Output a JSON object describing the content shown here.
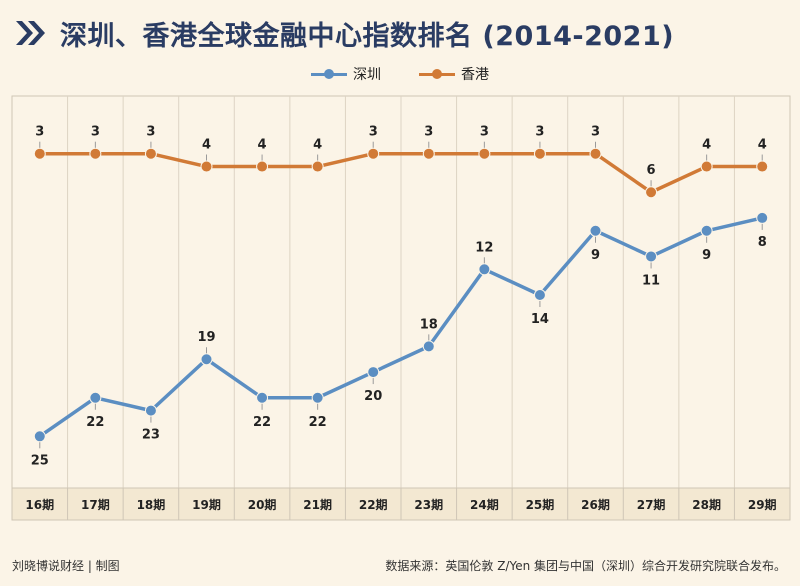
{
  "header": {
    "title": "深圳、香港全球金融中心指数排名 (2014-2021)"
  },
  "footer": {
    "credit": "刘晓博说财经 | 制图",
    "source": "数据来源：英国伦敦 Z/Yen 集团与中国（深圳）综合开发研究院联合发布。"
  },
  "chart_data": {
    "type": "line",
    "title": "深圳、香港全球金融中心指数排名 (2014-2021)",
    "categories": [
      "16期",
      "17期",
      "18期",
      "19期",
      "20期",
      "21期",
      "22期",
      "23期",
      "24期",
      "25期",
      "26期",
      "27期",
      "28期",
      "29期"
    ],
    "series": [
      {
        "name": "深圳",
        "color": "#5b8ec2",
        "values": [
          25,
          22,
          23,
          19,
          22,
          22,
          20,
          18,
          12,
          14,
          9,
          11,
          9,
          8
        ]
      },
      {
        "name": "香港",
        "color": "#d17a36",
        "values": [
          3,
          3,
          3,
          4,
          4,
          4,
          3,
          3,
          3,
          3,
          3,
          6,
          4,
          4
        ]
      }
    ],
    "ylim": [
      1,
      27
    ],
    "y_inverted": true,
    "grid": "vertical",
    "legend": "top-center",
    "xlabel": "",
    "ylabel": ""
  }
}
